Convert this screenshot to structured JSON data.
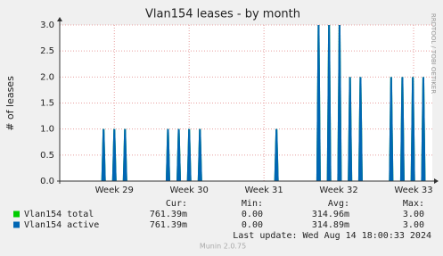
{
  "chart_data": {
    "type": "spike",
    "title": "Vlan154 leases - by month",
    "y_label": "# of leases",
    "side_text": "RRDTOOL / TOBI OETIKER",
    "xlim": [
      28.27,
      33.25
    ],
    "xticks": [
      {
        "value": 29,
        "label": "Week 29"
      },
      {
        "value": 30,
        "label": "Week 30"
      },
      {
        "value": 31,
        "label": "Week 31"
      },
      {
        "value": 32,
        "label": "Week 32"
      },
      {
        "value": 33,
        "label": "Week 33"
      }
    ],
    "ylim": [
      0,
      3
    ],
    "yticks": [
      {
        "value": 0,
        "label": "0.0"
      },
      {
        "value": 0.5,
        "label": "0.5"
      },
      {
        "value": 1,
        "label": "1.0"
      },
      {
        "value": 1.5,
        "label": "1.5"
      },
      {
        "value": 2,
        "label": "2.0"
      },
      {
        "value": 2.5,
        "label": "2.5"
      },
      {
        "value": 3,
        "label": "3.0"
      }
    ],
    "grid": true,
    "x": [
      28.856,
      29.0,
      29.143,
      29.717,
      29.861,
      30.0,
      30.144,
      31.167,
      31.73,
      31.87,
      32.01,
      32.15,
      32.29,
      32.7,
      32.85,
      32.99,
      33.13
    ],
    "series": [
      {
        "name": "Vlan154 total",
        "color": "#00cc00",
        "values": [
          1,
          1,
          1,
          1,
          1,
          1,
          1,
          1,
          3,
          3,
          3,
          2,
          2,
          2,
          2,
          2,
          2
        ]
      },
      {
        "name": "Vlan154 active",
        "color": "#0066b3",
        "values": [
          1,
          1,
          1,
          1,
          1,
          1,
          1,
          1,
          3,
          3,
          3,
          2,
          2,
          2,
          2,
          2,
          2
        ]
      }
    ],
    "legend_columns": [
      "Cur:",
      "Min:",
      "Avg:",
      "Max:"
    ],
    "legend_stats": [
      [
        "761.39m",
        "0.00",
        "314.96m",
        "3.00"
      ],
      [
        "761.39m",
        "0.00",
        "314.89m",
        "3.00"
      ]
    ],
    "last_update": "Last update: Wed Aug 14 18:00:33 2024",
    "footer": "Munin 2.0.75"
  }
}
